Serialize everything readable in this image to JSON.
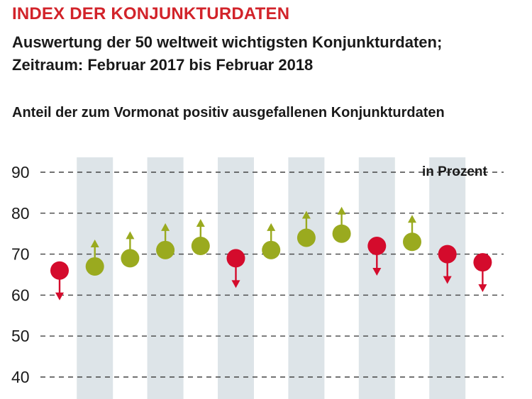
{
  "header": {
    "title": "INDEX DER KONJUNKTURDATEN",
    "subtitle_line1": "Auswertung der 50 weltweit wichtigsten Konjunkturdaten;",
    "subtitle_line2": "Zeitraum: Februar 2017 bis Februar 2018",
    "chart_heading": "Anteil der zum Vormonat positiv ausgefallenen Konjunkturdaten",
    "unit_label": "in Prozent"
  },
  "colors": {
    "up": "#9aaa1f",
    "down": "#d40b2c",
    "band": "#dde4e8",
    "grid": "#444444",
    "title": "#d2232a"
  },
  "chart_data": {
    "type": "scatter",
    "ylim": [
      40,
      90
    ],
    "yticks": [
      40,
      50,
      60,
      70,
      80,
      90
    ],
    "grid": true,
    "alternating_bands": true,
    "values": [
      66,
      67,
      69,
      71,
      72,
      69,
      71,
      74,
      75,
      72,
      73,
      70,
      68
    ],
    "direction": [
      "down",
      "up",
      "up",
      "up",
      "up",
      "down",
      "up",
      "up",
      "up",
      "down",
      "up",
      "down",
      "down"
    ],
    "ylabel": "in Prozent"
  }
}
